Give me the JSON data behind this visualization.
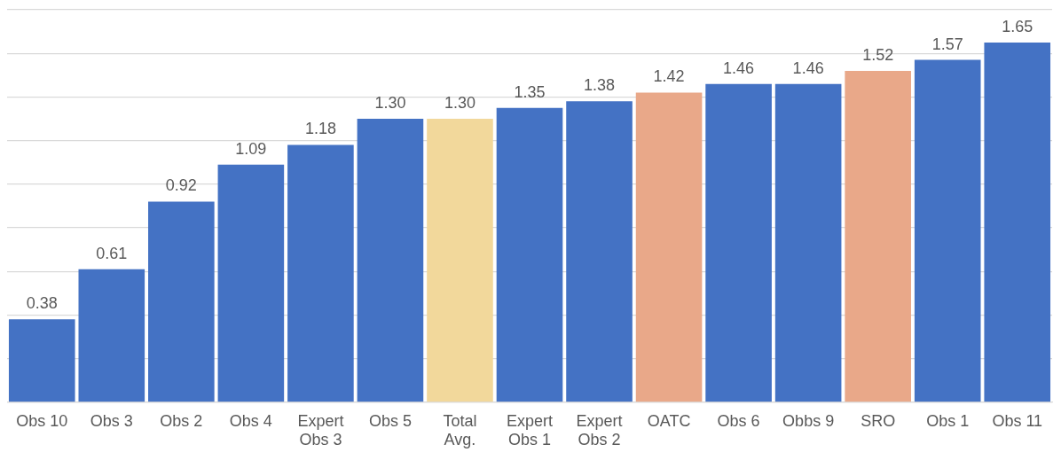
{
  "chart_data": {
    "type": "bar",
    "categories": [
      "Obs 10",
      "Obs 3",
      "Obs 2",
      "Obs 4",
      "Expert Obs 3",
      "Obs 5",
      "Total Avg.",
      "Expert Obs 1",
      "Expert Obs 2",
      "OATC",
      "Obs 6",
      "Obbs 9",
      "SRO",
      "Obs 1",
      "Obs 11"
    ],
    "values": [
      0.38,
      0.61,
      0.92,
      1.09,
      1.18,
      1.3,
      1.3,
      1.35,
      1.38,
      1.42,
      1.46,
      1.46,
      1.52,
      1.57,
      1.65
    ],
    "value_labels": [
      "0.38",
      "0.61",
      "0.92",
      "1.09",
      "1.18",
      "1.30",
      "1.30",
      "1.35",
      "1.38",
      "1.42",
      "1.46",
      "1.46",
      "1.52",
      "1.57",
      "1.65"
    ],
    "colors": [
      "#4472c4",
      "#4472c4",
      "#4472c4",
      "#4472c4",
      "#4472c4",
      "#4472c4",
      "#f2d89b",
      "#4472c4",
      "#4472c4",
      "#e9a889",
      "#4472c4",
      "#4472c4",
      "#e9a889",
      "#4472c4",
      "#4472c4"
    ],
    "ylim": [
      0,
      1.8
    ],
    "yticks": [
      {
        "value": 0,
        "label": null
      },
      {
        "value": 0.2,
        "label": null
      },
      {
        "value": 0.4,
        "label": null
      },
      {
        "value": 0.6,
        "label": null
      },
      {
        "value": 0.8,
        "label": null
      },
      {
        "value": 1,
        "label": null
      },
      {
        "value": 1.2,
        "label": null
      },
      {
        "value": 1.4,
        "label": null
      },
      {
        "value": 1.6,
        "label": null
      },
      {
        "value": 1.8,
        "label": null
      }
    ],
    "tick_labels": "x",
    "grid": "y",
    "legend": false
  }
}
